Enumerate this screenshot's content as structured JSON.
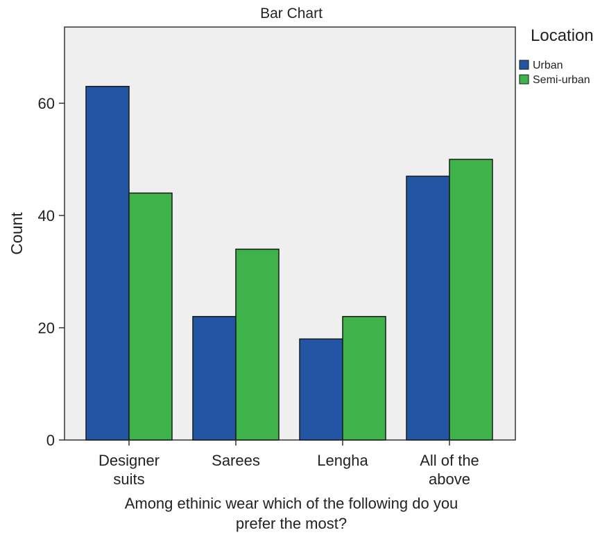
{
  "chart_data": {
    "type": "bar",
    "title": "Bar Chart",
    "xlabel_lines": [
      "Among ethinic wear which of the following do you",
      "prefer the most?"
    ],
    "ylabel": "Count",
    "categories": [
      [
        "Designer",
        "suits"
      ],
      [
        "Sarees"
      ],
      [
        "Lengha"
      ],
      [
        "All of the",
        "above"
      ]
    ],
    "series": [
      {
        "name": "Urban",
        "color": "#2255a4",
        "values": [
          63,
          22,
          18,
          47
        ]
      },
      {
        "name": "Semi-urban",
        "color": "#3db34a",
        "values": [
          44,
          34,
          22,
          50
        ]
      }
    ],
    "legend_title": "Location",
    "legend_position": "top-right, outside plot",
    "ylim": [
      0,
      74
    ],
    "yticks": [
      0,
      20,
      40,
      60
    ],
    "plot_background": "#efefef",
    "grid": false
  }
}
